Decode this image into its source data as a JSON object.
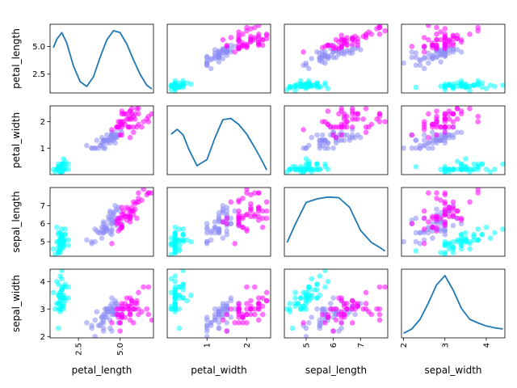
{
  "chart_data": {
    "type": "scatter",
    "variables": [
      "petal_length",
      "petal_width",
      "sepal_length",
      "sepal_width"
    ],
    "diagonal": "kde",
    "grid": false,
    "legend": "none",
    "groups": [
      {
        "color": "#00FFFF"
      },
      {
        "color": "#8C8CF5"
      },
      {
        "color": "#FF00FF"
      }
    ],
    "ranges": {
      "petal_length": [
        0.8,
        7.0
      ],
      "petal_width": [
        0.0,
        2.6
      ],
      "sepal_length": [
        4.2,
        8.0
      ],
      "sepal_width": [
        1.95,
        4.45
      ]
    },
    "ticks": {
      "petal_length": [
        2.5,
        5.0
      ],
      "petal_width": [
        1,
        2
      ],
      "sepal_length": [
        5,
        6,
        7
      ],
      "sepal_width": [
        2,
        3,
        4
      ]
    },
    "tick_labels": {
      "petal_length": [
        "2.5",
        "5.0"
      ],
      "petal_width": [
        "1",
        "2"
      ],
      "sepal_length": [
        "5",
        "6",
        "7"
      ],
      "sepal_width": [
        "2",
        "3",
        "4"
      ]
    },
    "kde": {
      "petal_length": {
        "x": [
          1.0,
          1.2,
          1.5,
          1.8,
          2.2,
          2.6,
          3.0,
          3.4,
          3.8,
          4.2,
          4.6,
          5.0,
          5.4,
          5.8,
          6.2,
          6.6,
          6.9
        ],
        "y": [
          0.72,
          0.86,
          0.97,
          0.8,
          0.42,
          0.16,
          0.08,
          0.24,
          0.56,
          0.85,
          1.0,
          0.97,
          0.78,
          0.52,
          0.28,
          0.1,
          0.04
        ]
      },
      "petal_width": {
        "x": [
          0.1,
          0.25,
          0.4,
          0.55,
          0.75,
          1.0,
          1.2,
          1.4,
          1.6,
          1.8,
          2.0,
          2.2,
          2.4,
          2.5
        ],
        "y": [
          0.64,
          0.72,
          0.63,
          0.38,
          0.12,
          0.22,
          0.58,
          0.88,
          0.9,
          0.8,
          0.64,
          0.42,
          0.18,
          0.05
        ]
      },
      "sepal_length": {
        "x": [
          4.3,
          4.6,
          5.0,
          5.4,
          5.8,
          6.2,
          6.6,
          7.0,
          7.4,
          7.7,
          7.9
        ],
        "y": [
          0.2,
          0.5,
          0.86,
          0.92,
          0.95,
          0.94,
          0.78,
          0.4,
          0.2,
          0.12,
          0.06
        ]
      },
      "sepal_width": {
        "x": [
          2.0,
          2.2,
          2.4,
          2.6,
          2.8,
          3.0,
          3.2,
          3.4,
          3.6,
          3.8,
          4.0,
          4.2,
          4.4
        ],
        "y": [
          0.05,
          0.12,
          0.28,
          0.55,
          0.85,
          1.0,
          0.76,
          0.46,
          0.28,
          0.22,
          0.17,
          0.14,
          0.12
        ]
      }
    },
    "samples": [
      [
        1.4,
        0.2,
        5.1,
        3.5,
        0
      ],
      [
        1.4,
        0.2,
        4.9,
        3.0,
        0
      ],
      [
        1.3,
        0.2,
        4.7,
        3.2,
        0
      ],
      [
        1.5,
        0.2,
        4.6,
        3.1,
        0
      ],
      [
        1.4,
        0.2,
        5.0,
        3.6,
        0
      ],
      [
        1.7,
        0.4,
        5.4,
        3.9,
        0
      ],
      [
        1.4,
        0.3,
        4.6,
        3.4,
        0
      ],
      [
        1.5,
        0.2,
        5.0,
        3.4,
        0
      ],
      [
        1.4,
        0.2,
        4.4,
        2.9,
        0
      ],
      [
        1.5,
        0.1,
        4.9,
        3.1,
        0
      ],
      [
        1.5,
        0.2,
        5.4,
        3.7,
        0
      ],
      [
        1.6,
        0.2,
        4.8,
        3.4,
        0
      ],
      [
        1.4,
        0.1,
        4.8,
        3.0,
        0
      ],
      [
        1.1,
        0.1,
        4.3,
        3.0,
        0
      ],
      [
        1.2,
        0.2,
        5.8,
        4.0,
        0
      ],
      [
        1.5,
        0.4,
        5.7,
        4.4,
        0
      ],
      [
        1.3,
        0.4,
        5.4,
        3.9,
        0
      ],
      [
        1.4,
        0.3,
        5.1,
        3.5,
        0
      ],
      [
        1.7,
        0.3,
        5.7,
        3.8,
        0
      ],
      [
        1.5,
        0.3,
        5.1,
        3.8,
        0
      ],
      [
        1.7,
        0.2,
        5.4,
        3.4,
        0
      ],
      [
        1.5,
        0.4,
        5.1,
        3.7,
        0
      ],
      [
        1.0,
        0.2,
        4.6,
        3.6,
        0
      ],
      [
        1.7,
        0.5,
        5.1,
        3.3,
        0
      ],
      [
        1.9,
        0.2,
        4.8,
        3.4,
        0
      ],
      [
        1.6,
        0.2,
        5.0,
        3.0,
        0
      ],
      [
        1.6,
        0.4,
        5.0,
        3.4,
        0
      ],
      [
        1.5,
        0.2,
        5.2,
        3.5,
        0
      ],
      [
        1.4,
        0.2,
        5.2,
        3.4,
        0
      ],
      [
        1.6,
        0.2,
        4.7,
        3.2,
        0
      ],
      [
        1.6,
        0.2,
        4.8,
        3.1,
        0
      ],
      [
        1.5,
        0.4,
        5.4,
        3.4,
        0
      ],
      [
        1.5,
        0.1,
        5.2,
        4.1,
        0
      ],
      [
        1.4,
        0.2,
        5.5,
        4.2,
        0
      ],
      [
        1.5,
        0.2,
        4.9,
        3.1,
        0
      ],
      [
        1.2,
        0.2,
        5.0,
        3.2,
        0
      ],
      [
        1.3,
        0.2,
        5.5,
        3.5,
        0
      ],
      [
        1.4,
        0.1,
        4.9,
        3.6,
        0
      ],
      [
        1.3,
        0.2,
        4.4,
        3.0,
        0
      ],
      [
        1.5,
        0.2,
        5.1,
        3.4,
        0
      ],
      [
        1.3,
        0.3,
        5.0,
        3.5,
        0
      ],
      [
        1.3,
        0.3,
        4.5,
        2.3,
        0
      ],
      [
        1.3,
        0.2,
        4.4,
        3.2,
        0
      ],
      [
        1.6,
        0.6,
        5.0,
        3.5,
        0
      ],
      [
        1.9,
        0.4,
        5.1,
        3.8,
        0
      ],
      [
        1.4,
        0.3,
        4.8,
        3.0,
        0
      ],
      [
        1.6,
        0.2,
        5.1,
        3.8,
        0
      ],
      [
        1.4,
        0.2,
        4.6,
        3.2,
        0
      ],
      [
        1.5,
        0.2,
        5.3,
        3.7,
        0
      ],
      [
        1.4,
        0.2,
        5.0,
        3.3,
        0
      ],
      [
        4.7,
        1.4,
        7.0,
        3.2,
        1
      ],
      [
        4.5,
        1.5,
        6.4,
        3.2,
        1
      ],
      [
        4.9,
        1.5,
        6.9,
        3.1,
        1
      ],
      [
        4.0,
        1.3,
        5.5,
        2.3,
        1
      ],
      [
        4.6,
        1.5,
        6.5,
        2.8,
        1
      ],
      [
        4.5,
        1.3,
        5.7,
        2.8,
        1
      ],
      [
        4.7,
        1.6,
        6.3,
        3.3,
        1
      ],
      [
        3.3,
        1.0,
        4.9,
        2.4,
        1
      ],
      [
        4.6,
        1.3,
        6.6,
        2.9,
        1
      ],
      [
        3.9,
        1.4,
        5.2,
        2.7,
        1
      ],
      [
        3.5,
        1.0,
        5.0,
        2.0,
        1
      ],
      [
        4.2,
        1.5,
        5.9,
        3.0,
        1
      ],
      [
        4.0,
        1.0,
        6.0,
        2.2,
        1
      ],
      [
        4.7,
        1.4,
        6.1,
        2.9,
        1
      ],
      [
        3.6,
        1.3,
        5.6,
        2.9,
        1
      ],
      [
        4.4,
        1.4,
        6.7,
        3.1,
        1
      ],
      [
        4.5,
        1.5,
        5.6,
        3.0,
        1
      ],
      [
        4.1,
        1.0,
        5.8,
        2.7,
        1
      ],
      [
        4.5,
        1.5,
        6.2,
        2.2,
        1
      ],
      [
        3.9,
        1.1,
        5.6,
        2.5,
        1
      ],
      [
        4.8,
        1.8,
        5.9,
        3.2,
        1
      ],
      [
        4.0,
        1.3,
        6.1,
        2.8,
        1
      ],
      [
        4.9,
        1.5,
        6.3,
        2.5,
        1
      ],
      [
        4.7,
        1.2,
        6.1,
        2.8,
        1
      ],
      [
        4.3,
        1.3,
        6.4,
        2.9,
        1
      ],
      [
        4.4,
        1.4,
        6.6,
        3.0,
        1
      ],
      [
        4.8,
        1.4,
        6.8,
        2.8,
        1
      ],
      [
        5.0,
        1.7,
        6.7,
        3.0,
        1
      ],
      [
        4.5,
        1.5,
        6.0,
        2.9,
        1
      ],
      [
        3.5,
        1.0,
        5.7,
        2.6,
        1
      ],
      [
        3.8,
        1.1,
        5.5,
        2.4,
        1
      ],
      [
        3.7,
        1.0,
        5.5,
        2.4,
        1
      ],
      [
        3.9,
        1.2,
        5.8,
        2.7,
        1
      ],
      [
        5.1,
        1.6,
        6.0,
        2.7,
        1
      ],
      [
        4.5,
        1.5,
        5.4,
        3.0,
        1
      ],
      [
        4.5,
        1.6,
        6.0,
        3.4,
        1
      ],
      [
        4.7,
        1.5,
        6.7,
        3.1,
        1
      ],
      [
        4.4,
        1.3,
        6.3,
        2.3,
        1
      ],
      [
        4.1,
        1.3,
        5.6,
        3.0,
        1
      ],
      [
        4.0,
        1.3,
        5.5,
        2.5,
        1
      ],
      [
        4.4,
        1.2,
        5.5,
        2.6,
        1
      ],
      [
        4.6,
        1.4,
        6.1,
        3.0,
        1
      ],
      [
        4.0,
        1.2,
        5.8,
        2.6,
        1
      ],
      [
        3.3,
        1.0,
        5.0,
        2.3,
        1
      ],
      [
        4.2,
        1.3,
        5.6,
        2.7,
        1
      ],
      [
        4.2,
        1.2,
        5.7,
        3.0,
        1
      ],
      [
        4.2,
        1.3,
        5.7,
        2.9,
        1
      ],
      [
        4.3,
        1.3,
        6.2,
        2.9,
        1
      ],
      [
        3.0,
        1.1,
        5.1,
        2.5,
        1
      ],
      [
        4.1,
        1.3,
        5.7,
        2.8,
        1
      ],
      [
        6.0,
        2.5,
        6.3,
        3.3,
        2
      ],
      [
        5.1,
        1.9,
        5.8,
        2.7,
        2
      ],
      [
        5.9,
        2.1,
        7.1,
        3.0,
        2
      ],
      [
        5.6,
        1.8,
        6.3,
        2.9,
        2
      ],
      [
        5.8,
        2.2,
        6.5,
        3.0,
        2
      ],
      [
        6.6,
        2.1,
        7.6,
        3.0,
        2
      ],
      [
        4.5,
        1.7,
        4.9,
        2.5,
        2
      ],
      [
        6.3,
        1.8,
        7.3,
        2.9,
        2
      ],
      [
        5.8,
        1.8,
        6.7,
        2.5,
        2
      ],
      [
        6.1,
        2.5,
        7.2,
        3.6,
        2
      ],
      [
        5.1,
        2.0,
        6.5,
        3.2,
        2
      ],
      [
        5.3,
        1.9,
        6.4,
        2.7,
        2
      ],
      [
        5.5,
        2.1,
        6.8,
        3.0,
        2
      ],
      [
        5.0,
        2.0,
        5.7,
        2.5,
        2
      ],
      [
        5.1,
        2.4,
        5.8,
        2.8,
        2
      ],
      [
        5.3,
        2.3,
        6.4,
        3.2,
        2
      ],
      [
        5.5,
        1.8,
        6.5,
        3.0,
        2
      ],
      [
        6.7,
        2.2,
        7.7,
        3.8,
        2
      ],
      [
        6.9,
        2.3,
        7.7,
        2.6,
        2
      ],
      [
        5.0,
        1.5,
        6.0,
        2.2,
        2
      ],
      [
        5.7,
        2.3,
        6.9,
        3.2,
        2
      ],
      [
        4.9,
        2.0,
        5.6,
        2.8,
        2
      ],
      [
        6.7,
        2.0,
        7.7,
        2.8,
        2
      ],
      [
        4.9,
        1.8,
        6.3,
        2.7,
        2
      ],
      [
        5.7,
        2.1,
        6.7,
        3.3,
        2
      ],
      [
        6.0,
        1.8,
        7.2,
        3.2,
        2
      ],
      [
        4.8,
        1.8,
        6.2,
        2.8,
        2
      ],
      [
        4.9,
        1.8,
        6.1,
        3.0,
        2
      ],
      [
        5.6,
        2.1,
        6.4,
        2.8,
        2
      ],
      [
        5.8,
        1.6,
        7.2,
        3.0,
        2
      ],
      [
        6.1,
        1.9,
        7.4,
        2.8,
        2
      ],
      [
        6.4,
        2.0,
        7.9,
        3.8,
        2
      ],
      [
        5.6,
        2.2,
        6.4,
        2.8,
        2
      ],
      [
        5.1,
        1.5,
        6.3,
        2.8,
        2
      ],
      [
        5.6,
        1.4,
        6.1,
        2.6,
        2
      ],
      [
        6.1,
        2.3,
        7.7,
        3.0,
        2
      ],
      [
        5.6,
        2.4,
        6.3,
        3.4,
        2
      ],
      [
        5.5,
        1.8,
        6.4,
        3.1,
        2
      ],
      [
        4.8,
        1.8,
        6.0,
        3.0,
        2
      ],
      [
        5.4,
        2.1,
        6.9,
        3.1,
        2
      ],
      [
        5.6,
        2.4,
        6.7,
        3.1,
        2
      ],
      [
        5.1,
        2.3,
        6.9,
        3.1,
        2
      ],
      [
        5.1,
        1.9,
        5.8,
        2.7,
        2
      ],
      [
        5.9,
        2.3,
        6.8,
        3.2,
        2
      ],
      [
        5.7,
        2.5,
        6.7,
        3.3,
        2
      ],
      [
        5.2,
        2.3,
        6.7,
        3.0,
        2
      ],
      [
        5.0,
        1.9,
        6.3,
        2.5,
        2
      ],
      [
        5.2,
        2.0,
        6.5,
        3.0,
        2
      ],
      [
        5.4,
        2.3,
        6.2,
        3.4,
        2
      ],
      [
        5.1,
        1.8,
        5.9,
        3.0,
        2
      ]
    ]
  }
}
